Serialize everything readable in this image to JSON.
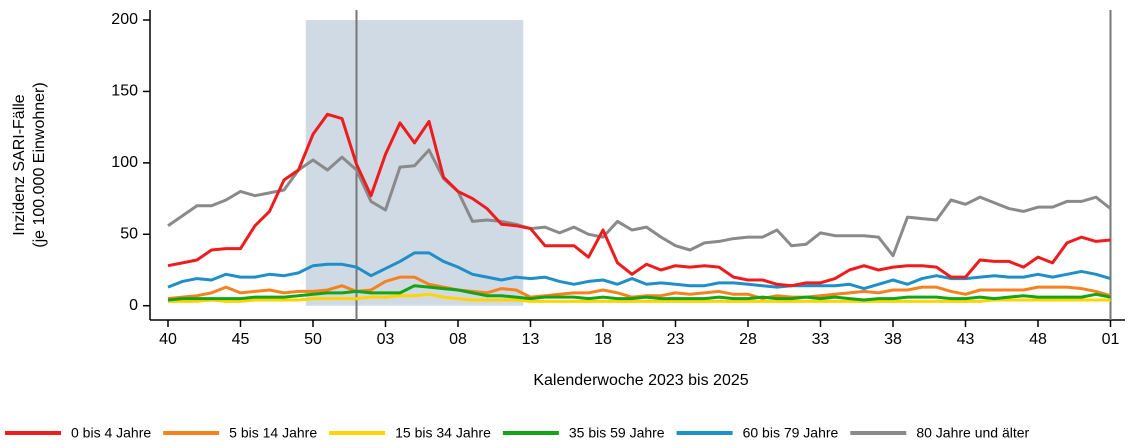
{
  "chart_data": {
    "type": "line",
    "ylabel": [
      "Inzidenz SARI-Fälle",
      "(je 100.000 Einwohner)"
    ],
    "xlabel": "Kalenderwoche 2023 bis 2025",
    "categories": [
      "40",
      null,
      null,
      null,
      null,
      "45",
      null,
      null,
      null,
      null,
      "50",
      null,
      null,
      null,
      null,
      "03",
      null,
      null,
      null,
      null,
      "08",
      null,
      null,
      null,
      null,
      "13",
      null,
      null,
      null,
      null,
      "18",
      null,
      null,
      null,
      null,
      "23",
      null,
      null,
      null,
      null,
      "28",
      null,
      null,
      null,
      null,
      "33",
      null,
      null,
      null,
      null,
      "38",
      null,
      null,
      null,
      null,
      "43",
      null,
      null,
      null,
      null,
      "48",
      null,
      null,
      null,
      null,
      "01"
    ],
    "ylim": [
      -10,
      207
    ],
    "yticks": [
      0,
      50,
      100,
      150,
      200
    ],
    "shade": {
      "x": [
        9.5,
        24.5
      ],
      "y": [
        0,
        200
      ],
      "color": "#d0dae4"
    },
    "vlines": [
      13,
      65
    ],
    "series": [
      {
        "name": "0 bis 4 Jahre",
        "color": "#ee1c1c",
        "values": [
          28,
          30,
          32,
          39,
          40,
          40,
          56,
          66,
          88,
          95,
          120,
          134,
          131,
          99,
          77,
          106,
          128,
          114,
          129,
          90,
          80,
          75,
          68,
          57,
          56,
          54,
          42,
          42,
          42,
          34,
          53,
          30,
          22,
          29,
          25,
          28,
          27,
          28,
          27,
          20,
          18,
          18,
          15,
          14,
          16,
          16,
          19,
          25,
          28,
          25,
          27,
          28,
          28,
          27,
          20,
          20,
          32,
          31,
          31,
          27,
          34,
          30,
          44,
          48,
          45,
          46
        ]
      },
      {
        "name": "5 bis 14 Jahre",
        "color": "#f5821f",
        "values": [
          5,
          6,
          7,
          9,
          13,
          9,
          10,
          11,
          9,
          10,
          10,
          11,
          14,
          10,
          11,
          17,
          20,
          20,
          15,
          13,
          11,
          10,
          9,
          12,
          11,
          6,
          7,
          8,
          9,
          9,
          11,
          9,
          6,
          7,
          7,
          9,
          8,
          9,
          10,
          8,
          8,
          5,
          7,
          6,
          6,
          7,
          8,
          9,
          10,
          9,
          11,
          11,
          13,
          13,
          10,
          8,
          11,
          11,
          11,
          11,
          13,
          13,
          13,
          12,
          10,
          7
        ]
      },
      {
        "name": "15 bis 34 Jahre",
        "color": "#ffd400",
        "values": [
          3,
          3,
          3,
          4,
          3,
          3,
          4,
          4,
          4,
          4,
          5,
          5,
          5,
          5,
          6,
          6,
          7,
          7,
          8,
          6,
          5,
          4,
          4,
          4,
          4,
          3,
          3,
          3,
          3,
          3,
          3,
          3,
          3,
          3,
          3,
          3,
          3,
          3,
          3,
          3,
          3,
          3,
          3,
          3,
          3,
          3,
          3,
          3,
          3,
          3,
          3,
          3,
          3,
          3,
          3,
          3,
          3,
          4,
          4,
          4,
          4,
          4,
          4,
          4,
          4,
          4
        ]
      },
      {
        "name": "35 bis 59 Jahre",
        "color": "#14a514",
        "values": [
          4,
          5,
          5,
          5,
          5,
          5,
          6,
          6,
          6,
          7,
          8,
          9,
          9,
          10,
          9,
          9,
          9,
          14,
          13,
          12,
          11,
          9,
          7,
          7,
          6,
          5,
          6,
          6,
          6,
          5,
          6,
          5,
          5,
          6,
          5,
          5,
          5,
          5,
          6,
          5,
          5,
          6,
          5,
          5,
          6,
          5,
          6,
          5,
          4,
          5,
          5,
          6,
          6,
          6,
          5,
          5,
          6,
          5,
          6,
          7,
          6,
          6,
          6,
          6,
          8,
          6
        ]
      },
      {
        "name": "60 bis 79 Jahre",
        "color": "#1e8fc8",
        "values": [
          13,
          17,
          19,
          18,
          22,
          20,
          20,
          22,
          21,
          23,
          28,
          29,
          29,
          27,
          21,
          26,
          31,
          37,
          37,
          31,
          27,
          22,
          20,
          18,
          20,
          19,
          20,
          17,
          15,
          17,
          18,
          15,
          19,
          15,
          16,
          15,
          14,
          14,
          16,
          16,
          15,
          14,
          13,
          14,
          14,
          14,
          14,
          15,
          12,
          15,
          18,
          15,
          19,
          21,
          19,
          19,
          20,
          21,
          20,
          20,
          22,
          20,
          22,
          24,
          22,
          19
        ]
      },
      {
        "name": "80 Jahre und älter",
        "color": "#8a8a8a",
        "values": [
          56,
          63,
          70,
          70,
          74,
          80,
          77,
          79,
          81,
          95,
          102,
          95,
          104,
          95,
          73,
          67,
          97,
          98,
          109,
          89,
          80,
          59,
          60,
          59,
          57,
          54,
          55,
          51,
          55,
          50,
          48,
          59,
          53,
          55,
          48,
          42,
          39,
          44,
          45,
          47,
          48,
          48,
          53,
          42,
          43,
          51,
          49,
          49,
          49,
          48,
          35,
          62,
          61,
          60,
          74,
          71,
          76,
          72,
          68,
          66,
          69,
          69,
          73,
          73,
          76,
          68
        ]
      }
    ]
  }
}
